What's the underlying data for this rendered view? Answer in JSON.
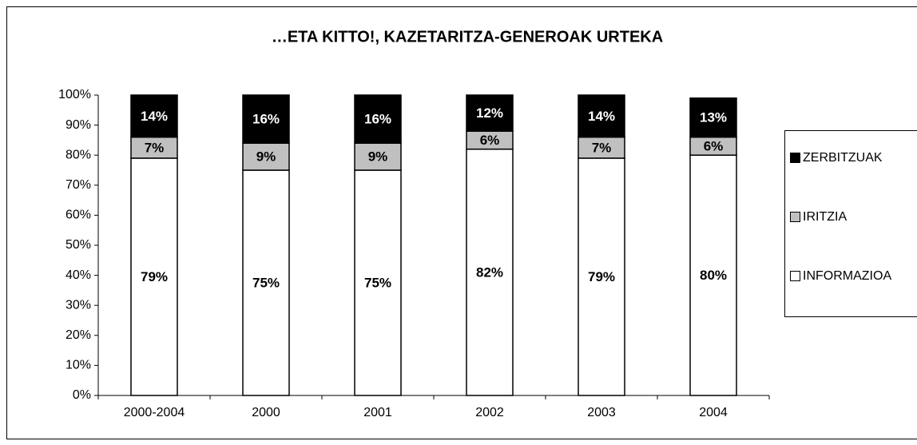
{
  "chart_data": {
    "type": "stacked_bar",
    "title": "…ETA KITTO!,  KAZETARITZA-GENEROAK URTEKA",
    "categories": [
      "2000-2004",
      "2000",
      "2001",
      "2002",
      "2003",
      "2004"
    ],
    "series": [
      {
        "name": "INFORMAZIOA",
        "color": "#ffffff",
        "values": [
          79,
          75,
          75,
          82,
          79,
          80
        ],
        "value_labels": [
          "79%",
          "75%",
          "75%",
          "82%",
          "79%",
          "80%"
        ]
      },
      {
        "name": "IRITZIA",
        "color": "#c0c0c0",
        "values": [
          7,
          9,
          9,
          6,
          7,
          6
        ],
        "value_labels": [
          "7%",
          "9%",
          "9%",
          "6%",
          "7%",
          "6%"
        ]
      },
      {
        "name": "ZERBITZUAK",
        "color": "#000000",
        "values": [
          14,
          16,
          16,
          12,
          14,
          13
        ],
        "value_labels": [
          "14%",
          "16%",
          "16%",
          "12%",
          "14%",
          "13%"
        ]
      }
    ],
    "ylim": [
      0,
      100
    ],
    "yticks": [
      {
        "value": 0,
        "label": "0%"
      },
      {
        "value": 10,
        "label": "10%"
      },
      {
        "value": 20,
        "label": "20%"
      },
      {
        "value": 30,
        "label": "30%"
      },
      {
        "value": 40,
        "label": "40%"
      },
      {
        "value": 50,
        "label": "50%"
      },
      {
        "value": 60,
        "label": "60%"
      },
      {
        "value": 70,
        "label": "70%"
      },
      {
        "value": 80,
        "label": "80%"
      },
      {
        "value": 90,
        "label": "90%"
      },
      {
        "value": 100,
        "label": "100%"
      }
    ],
    "grid": false,
    "legend": "right"
  }
}
